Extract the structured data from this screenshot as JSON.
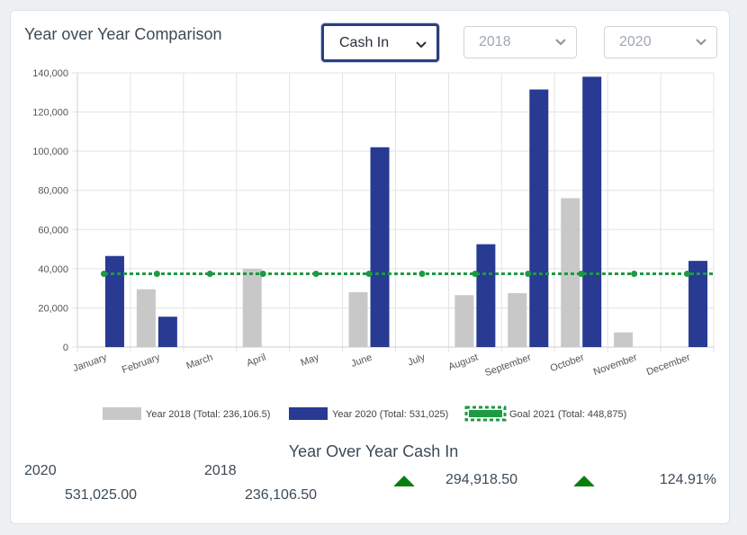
{
  "page": {
    "title": "Year over Year Comparison",
    "metric_select": "Cash In",
    "year_a_select": "2018",
    "year_b_select": "2020"
  },
  "summary": {
    "title": "Year Over Year Cash In",
    "year_b_label": "2020",
    "year_b_value": "531,025.00",
    "year_a_label": "2018",
    "year_a_value": "236,106.50",
    "difference": "294,918.50",
    "percent": "124.91%"
  },
  "colors": {
    "year_a": "#c8c8c8",
    "year_b": "#283a92",
    "goal": "#1e9a43",
    "increase_arrow": "#0a7d0f"
  },
  "chart_data": {
    "type": "bar",
    "categories": [
      "January",
      "February",
      "March",
      "April",
      "May",
      "June",
      "July",
      "August",
      "September",
      "October",
      "November",
      "December"
    ],
    "series": [
      {
        "name": "Year 2018 (Total: 236,106.5)",
        "type": "bar",
        "values": [
          0,
          29500,
          0,
          40000,
          0,
          28000,
          0,
          26500,
          27500,
          76000,
          7500,
          0
        ]
      },
      {
        "name": "Year 2020 (Total: 531,025)",
        "type": "bar",
        "values": [
          46500,
          15500,
          0,
          0,
          0,
          102000,
          0,
          52500,
          131500,
          138000,
          0,
          44000
        ]
      },
      {
        "name": "Goal 2021 (Total: 448,875)",
        "type": "line",
        "style": "dotted",
        "values": [
          37406,
          37406,
          37406,
          37406,
          37406,
          37406,
          37406,
          37406,
          37406,
          37406,
          37406,
          37406
        ]
      }
    ],
    "ylim": [
      0,
      140000
    ],
    "yticks": [
      "0",
      "20,000",
      "40,000",
      "60,000",
      "80,000",
      "100,000",
      "120,000",
      "140,000"
    ],
    "grid": true,
    "legend_position": "bottom"
  }
}
